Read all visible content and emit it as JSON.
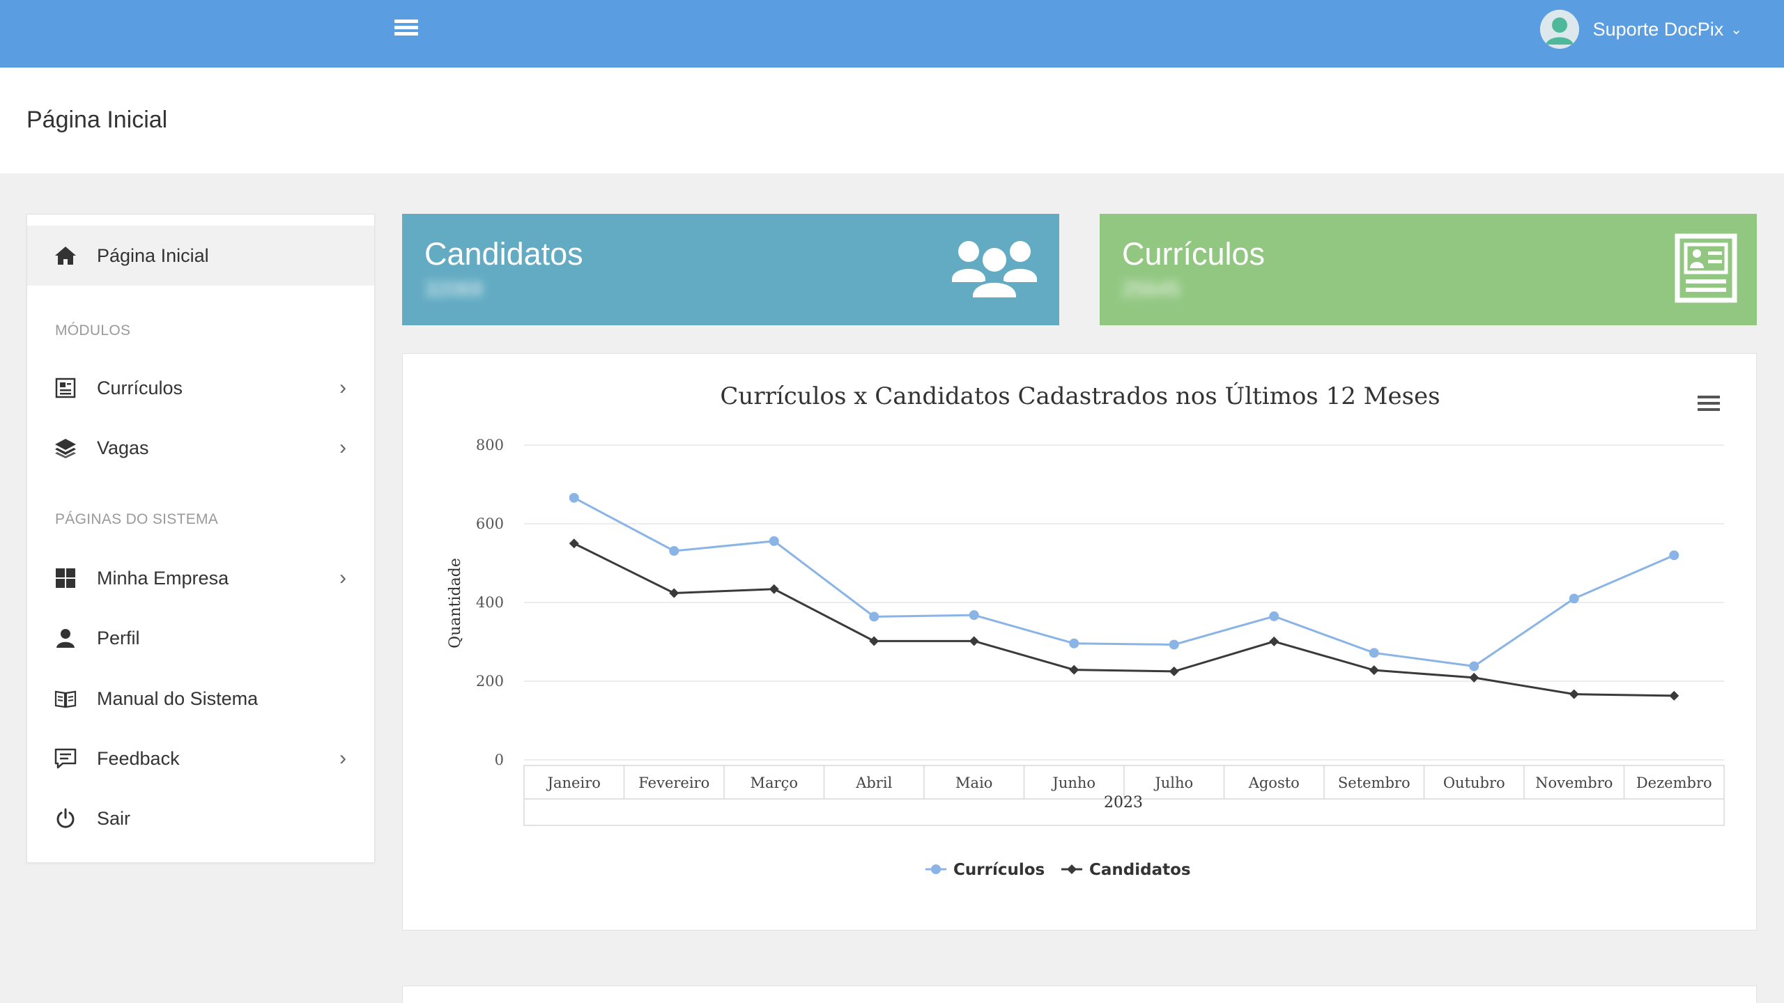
{
  "header": {
    "user_name": "Suporte DocPix",
    "menu_icon": "hamburger-icon",
    "avatar_icon": "user-avatar-icon"
  },
  "page": {
    "title": "Página Inicial"
  },
  "sidebar": {
    "home": {
      "label": "Página Inicial",
      "icon": "home-icon"
    },
    "sections": {
      "modules": "MÓDULOS",
      "system_pages": "PÁGINAS DO SISTEMA"
    },
    "modules": [
      {
        "label": "Currículos",
        "icon": "resume-icon",
        "has_arrow": true
      },
      {
        "label": "Vagas",
        "icon": "layers-icon",
        "has_arrow": true
      }
    ],
    "system": [
      {
        "label": "Minha Empresa",
        "icon": "grid-icon",
        "has_arrow": true
      },
      {
        "label": "Perfil",
        "icon": "user-icon",
        "has_arrow": false
      },
      {
        "label": "Manual do Sistema",
        "icon": "book-icon",
        "has_arrow": false
      },
      {
        "label": "Feedback",
        "icon": "comment-icon",
        "has_arrow": true
      },
      {
        "label": "Sair",
        "icon": "power-icon",
        "has_arrow": false
      }
    ],
    "arrow_glyph": "›"
  },
  "cards": {
    "candidatos": {
      "title": "Candidatos",
      "value": "32069",
      "color": "#62abc2",
      "icon": "users-group-icon"
    },
    "curriculos": {
      "title": "Currículos",
      "value": "25645",
      "color": "#92c782",
      "icon": "resume-card-icon"
    }
  },
  "chart_data": {
    "type": "line",
    "title": "Currículos x Candidatos Cadastrados nos Últimos 12 Meses",
    "ylabel": "Quantidade",
    "xlabel": "2023",
    "ylim": [
      0,
      800
    ],
    "yticks": [
      0,
      200,
      400,
      600,
      800
    ],
    "categories": [
      "Janeiro",
      "Fevereiro",
      "Março",
      "Abril",
      "Maio",
      "Junho",
      "Julho",
      "Agosto",
      "Setembro",
      "Outubro",
      "Novembro",
      "Dezembro"
    ],
    "series": [
      {
        "name": "Currículos",
        "color": "#8ab4e6",
        "marker": "circle",
        "values": [
          666,
          531,
          556,
          364,
          368,
          296,
          293,
          365,
          272,
          238,
          410,
          520
        ]
      },
      {
        "name": "Candidatos",
        "color": "#3a3a3a",
        "marker": "diamond",
        "values": [
          550,
          424,
          434,
          302,
          302,
          229,
          225,
          301,
          228,
          209,
          167,
          163
        ]
      }
    ],
    "grid": true,
    "legend": "bottom-center"
  }
}
